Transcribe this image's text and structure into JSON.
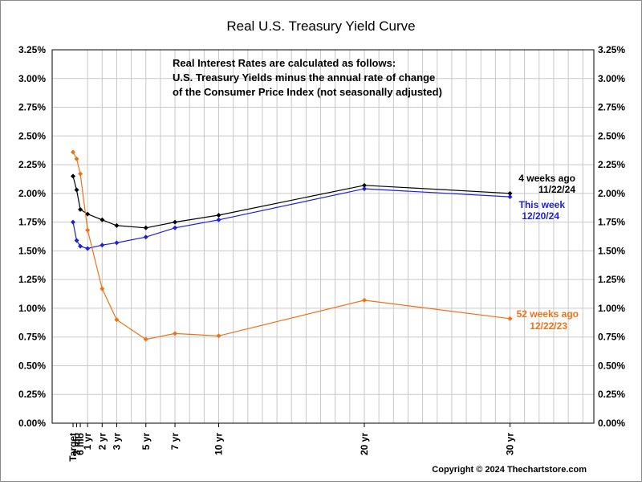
{
  "chart_data": {
    "type": "line",
    "title": "Real U.S. Treasury Yield Curve",
    "note_lines": [
      "Real Interest Rates are calculated as follows:",
      "U.S. Treasury Yields minus the annual rate of change",
      "of the Consumer Price Index (not seasonally adjusted)"
    ],
    "copyright": "Copyright © 2024 Thechartstore.com",
    "categories": [
      "Target",
      "3 mo",
      "6 mo",
      "1 yr",
      "2 yr",
      "3 yr",
      "5 yr",
      "7 yr",
      "10 yr",
      "20 yr",
      "30 yr"
    ],
    "x_years": [
      0,
      0.25,
      0.5,
      1,
      2,
      3,
      5,
      7,
      10,
      20,
      30
    ],
    "y_ticks": [
      "0.00%",
      "0.25%",
      "0.50%",
      "0.75%",
      "1.00%",
      "1.25%",
      "1.50%",
      "1.75%",
      "2.00%",
      "2.25%",
      "2.50%",
      "2.75%",
      "3.00%",
      "3.25%"
    ],
    "ylim": [
      0,
      3.25
    ],
    "grid": true,
    "series": [
      {
        "name": "4 weeks ago",
        "date": "11/22/24",
        "color": "#000000",
        "values": [
          2.15,
          2.03,
          1.86,
          1.82,
          1.77,
          1.72,
          1.7,
          1.75,
          1.81,
          2.07,
          2.0
        ]
      },
      {
        "name": "This week",
        "date": "12/20/24",
        "color": "#1f1fd6",
        "values": [
          1.75,
          1.59,
          1.54,
          1.52,
          1.55,
          1.57,
          1.62,
          1.7,
          1.77,
          2.04,
          1.97
        ]
      },
      {
        "name": "52 weeks ago",
        "date": "12/22/23",
        "color": "#f07016",
        "values": [
          2.36,
          2.3,
          2.17,
          1.68,
          1.17,
          0.9,
          0.73,
          0.78,
          0.76,
          1.07,
          0.91
        ]
      }
    ]
  }
}
